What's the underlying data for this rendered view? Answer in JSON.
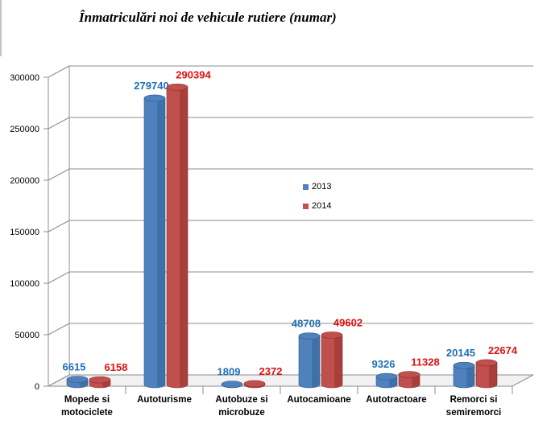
{
  "chart_data": {
    "type": "bar",
    "title": "Înmatriculări noi de vehicule rutiere (numar)",
    "xlabel": "",
    "ylabel": "",
    "ylim": [
      0,
      300000
    ],
    "yticks": [
      "0",
      "50000",
      "100000",
      "150000",
      "200000",
      "250000",
      "300000"
    ],
    "ytick_values": [
      0,
      50000,
      100000,
      150000,
      200000,
      250000,
      300000
    ],
    "grid": true,
    "legend_position": "center",
    "categories": [
      [
        "Mopede si",
        "motociclete"
      ],
      [
        "Autoturisme"
      ],
      [
        "Autobuze si",
        "microbuze"
      ],
      [
        "Autocamioane"
      ],
      [
        "Autotractoare"
      ],
      [
        "Remorci si",
        "semiremorci"
      ]
    ],
    "series": [
      {
        "name": "2013",
        "color": "#4f81bd",
        "color_dark": "#2f5a8f",
        "label_color": "#1f6fb4",
        "values": [
          6615,
          279740,
          1809,
          48708,
          9326,
          20145
        ]
      },
      {
        "name": "2014",
        "color": "#c0504d",
        "color_dark": "#8e2b29",
        "label_color": "#e01010",
        "values": [
          6158,
          290394,
          2372,
          49602,
          11328,
          22674
        ]
      }
    ]
  }
}
